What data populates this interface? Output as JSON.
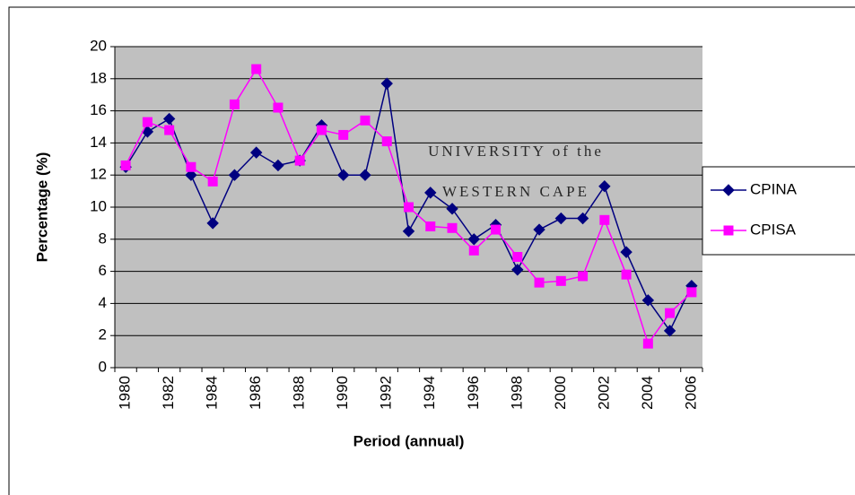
{
  "chart_data": {
    "type": "line",
    "x_label": "Period (annual)",
    "y_label": "Percentage (%)",
    "watermark": [
      "UNIVERSITY of the",
      "WESTERN CAPE"
    ],
    "categories": [
      "1980",
      null,
      "1982",
      null,
      "1984",
      null,
      "1986",
      null,
      "1988",
      null,
      "1990",
      null,
      "1992",
      null,
      "1994",
      null,
      "1996",
      null,
      "1998",
      null,
      "2000",
      null,
      "2002",
      null,
      "2004",
      null,
      "2006"
    ],
    "series": [
      {
        "name": "CPINA",
        "color": "#000080",
        "marker": "diamond",
        "values": [
          12.5,
          14.7,
          15.5,
          12.0,
          9.0,
          12.0,
          13.4,
          12.6,
          12.9,
          15.1,
          12.0,
          12.0,
          17.7,
          8.5,
          10.9,
          9.9,
          8.0,
          8.9,
          6.1,
          8.6,
          9.3,
          9.3,
          11.3,
          7.2,
          4.2,
          2.3,
          5.1
        ]
      },
      {
        "name": "CPISA",
        "color": "#ff00ff",
        "marker": "square",
        "values": [
          12.6,
          15.3,
          14.8,
          12.5,
          11.6,
          16.4,
          18.6,
          16.2,
          12.9,
          14.8,
          14.5,
          15.4,
          14.1,
          10.0,
          8.8,
          8.7,
          7.3,
          8.6,
          6.9,
          5.3,
          5.4,
          5.7,
          9.2,
          5.8,
          1.5,
          3.4,
          4.7
        ]
      }
    ],
    "ylim": [
      0,
      20
    ],
    "yticks": [
      0,
      2,
      4,
      6,
      8,
      10,
      12,
      14,
      16,
      18,
      20
    ],
    "grid": true,
    "legend": "right",
    "plot_background": "#c0c0c0"
  }
}
